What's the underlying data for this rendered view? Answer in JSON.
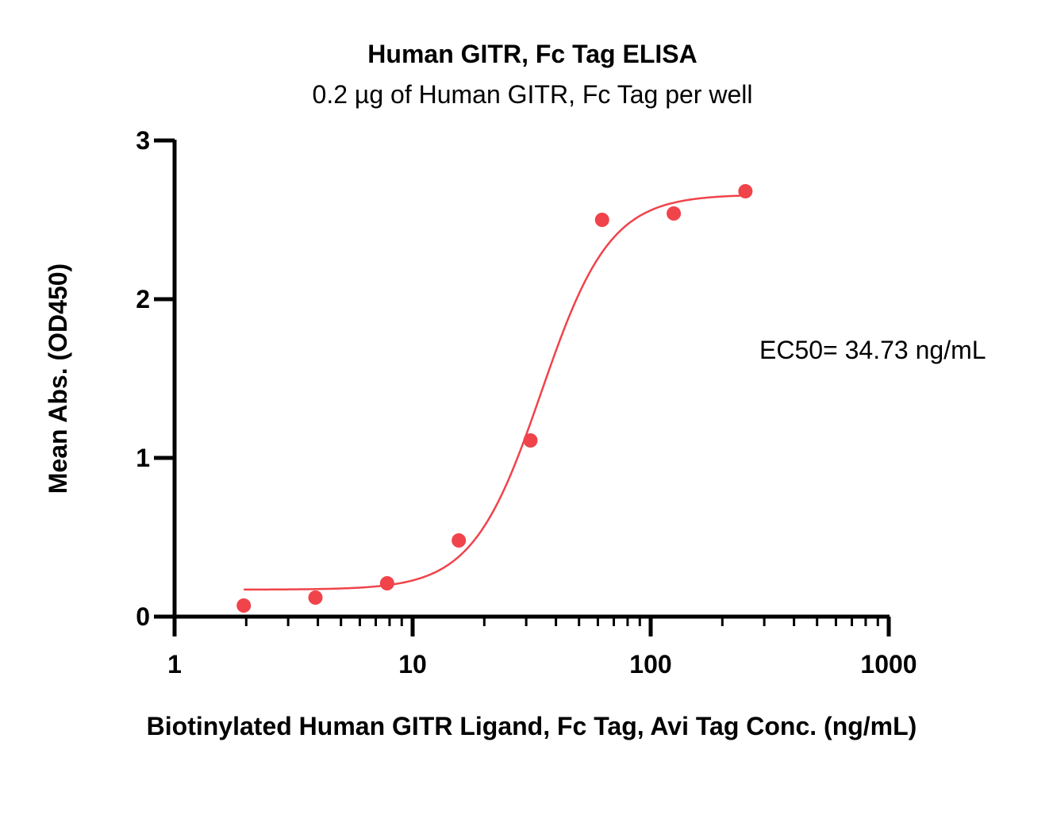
{
  "chart_data": {
    "type": "scatter",
    "title": "Human GITR, Fc Tag ELISA",
    "subtitle": "0.2 µg of Human GITR, Fc Tag per well",
    "xlabel": "Biotinylated Human GITR Ligand, Fc Tag, Avi Tag Conc. (ng/mL)",
    "ylabel": "Mean Abs. (OD450)",
    "xscale": "log",
    "xlim": [
      1,
      1000
    ],
    "ylim": [
      0,
      3
    ],
    "xticks": [
      "1",
      "10",
      "100",
      "1000"
    ],
    "yticks": [
      "0",
      "1",
      "2",
      "3"
    ],
    "grid": false,
    "color": "#f0434a",
    "points": [
      {
        "x": 1.953,
        "y": 0.07
      },
      {
        "x": 3.906,
        "y": 0.12
      },
      {
        "x": 7.813,
        "y": 0.21
      },
      {
        "x": 15.63,
        "y": 0.48
      },
      {
        "x": 31.25,
        "y": 1.11
      },
      {
        "x": 62.5,
        "y": 2.5
      },
      {
        "x": 125,
        "y": 2.54
      },
      {
        "x": 250,
        "y": 2.68
      }
    ],
    "fit": {
      "model": "4PL",
      "bottom": 0.17,
      "top": 2.66,
      "ec50": 34.73,
      "hill": 3.0,
      "x_range": [
        1.953,
        250
      ]
    },
    "annotation": "EC50= 34.73 ng/mL"
  }
}
